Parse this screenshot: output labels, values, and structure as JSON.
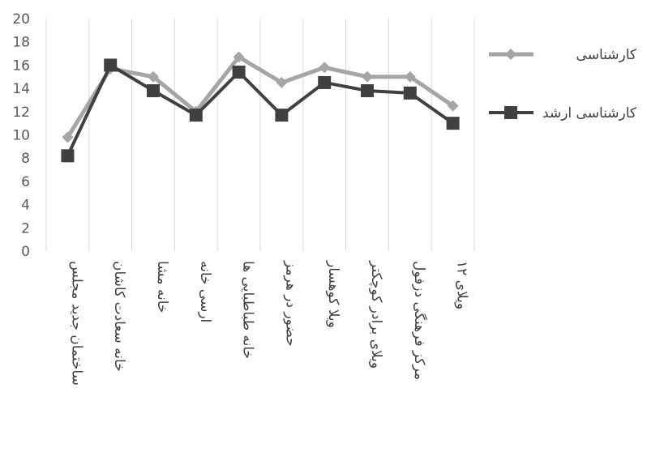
{
  "chart_data": {
    "type": "line",
    "categories": [
      "ساختمان جدید مجلس",
      "خانه سعادت کاشان",
      "خانه مشا",
      "ارسی خانه",
      "خانه طباطبایی ها",
      "حضور در هرمز",
      "ویلا کوهسار",
      "ویلای برادر کوچکتر",
      "مرکز فرهنگی دزفول",
      "ویلای ۱۲"
    ],
    "series": [
      {
        "name": "کارشناسی",
        "color": "#a5a5a5",
        "marker": "diamond",
        "values": [
          9.8,
          15.7,
          15.0,
          12.0,
          16.7,
          14.5,
          15.8,
          15.0,
          15.0,
          12.5
        ]
      },
      {
        "name": "کارشناسی ارشد",
        "color": "#404040",
        "marker": "square",
        "values": [
          8.2,
          16.0,
          13.8,
          11.7,
          15.4,
          11.7,
          14.5,
          13.8,
          13.6,
          11.0
        ]
      }
    ],
    "ylim": [
      0,
      20
    ],
    "yticks": [
      "0",
      "2",
      "4",
      "6",
      "8",
      "10",
      "12",
      "14",
      "16",
      "18",
      "20"
    ],
    "grid": "vertical category separators",
    "legend_position": "right"
  }
}
